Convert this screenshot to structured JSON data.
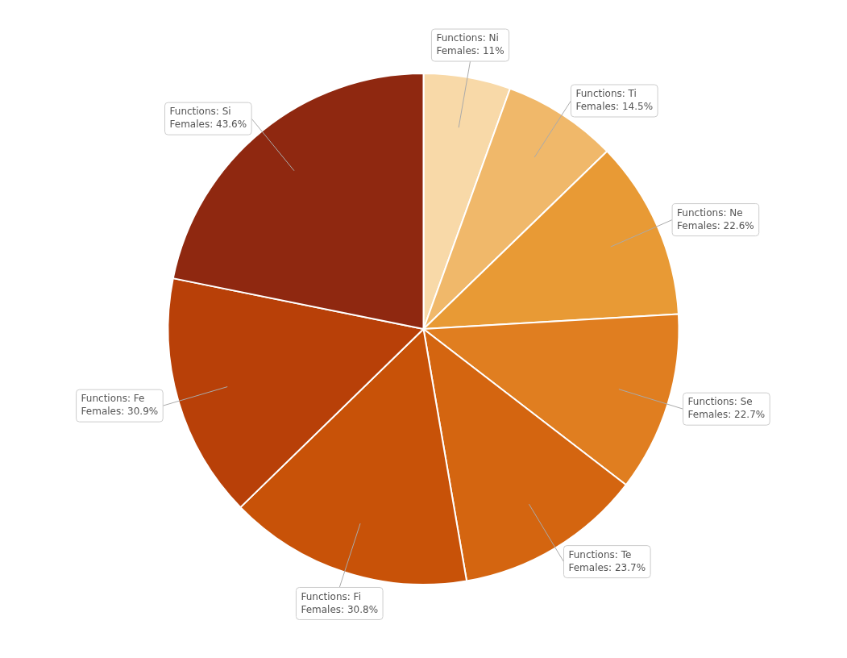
{
  "chart_data": {
    "type": "pie",
    "categories": [
      "Functions: Ni",
      "Functions: Ti",
      "Functions: Ne",
      "Functions: Se",
      "Functions: Te",
      "Functions: Fi",
      "Functions: Fe",
      "Functions: Si"
    ],
    "values": [
      11.0,
      14.5,
      22.6,
      22.7,
      23.7,
      30.8,
      30.9,
      43.6
    ],
    "value_labels": [
      "Females: 11%",
      "Females: 14.5%",
      "Females: 22.6%",
      "Females: 22.7%",
      "Females: 23.7%",
      "Females: 30.8%",
      "Females: 30.9%",
      "Females: 43.6%"
    ],
    "colors": [
      "#f8d9a8",
      "#f0b86a",
      "#e89a35",
      "#e07e20",
      "#d46510",
      "#c85208",
      "#b84008",
      "#8f2810"
    ],
    "data_labels": true
  }
}
